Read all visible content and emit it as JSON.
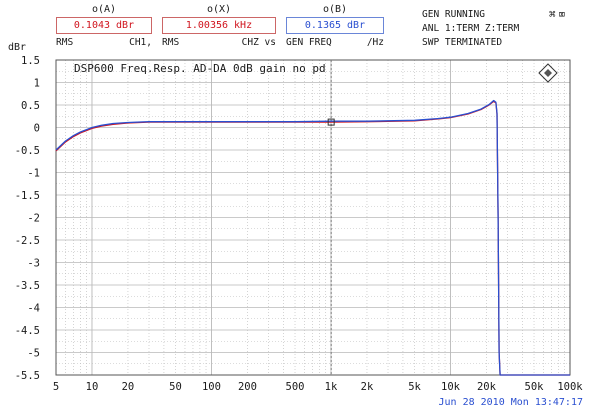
{
  "readouts": [
    {
      "id": "A",
      "caption": "o(A)",
      "value": "0.1043 dBr",
      "sub": [
        "RMS",
        "CH1,"
      ]
    },
    {
      "id": "X",
      "caption": "o(X)",
      "value": "1.00356 kHz",
      "sub": [
        "RMS",
        "CHZ vs"
      ]
    },
    {
      "id": "B",
      "caption": "o(B)",
      "value": "0.1365 dBr",
      "sub": [
        "GEN FREQ",
        "/Hz"
      ]
    }
  ],
  "status": [
    "GEN RUNNING",
    "ANL 1:TERM Z:TERM",
    "SWP TERMINATED"
  ],
  "datetime": "Jun 28 2010 Mon 13:47:17",
  "colors": {
    "trace_a": "#d0141e",
    "trace_b": "#2a4fd0",
    "readout_a": "#d0141e",
    "readout_b": "#2a4fd0",
    "grid": "#b8b8b8"
  },
  "icons": [
    "logo-diamond-icon",
    "toolbar-icons"
  ],
  "chart_data": {
    "type": "line",
    "title": "DSP600 Freq.Resp. AD-DA 0dB gain no pd",
    "xlabel": "",
    "ylabel": "dBr",
    "xscale": "log",
    "xlim": [
      5,
      100000
    ],
    "ylim": [
      -5.5,
      1.5
    ],
    "grid": true,
    "x_tick_labels": [
      "5",
      "10",
      "20",
      "50",
      "100",
      "200",
      "500",
      "1k",
      "2k",
      "5k",
      "10k",
      "20k",
      "50k",
      "100k"
    ],
    "x_tick_values": [
      5,
      10,
      20,
      50,
      100,
      200,
      500,
      1000,
      2000,
      5000,
      10000,
      20000,
      50000,
      100000
    ],
    "y_tick_labels": [
      "1.5",
      "1",
      "0.5",
      "0",
      "-0.5",
      "-1",
      "-1.5",
      "-2",
      "-2.5",
      "-3",
      "-3.5",
      "-4",
      "-4.5",
      "-5",
      "-5.5"
    ],
    "y_tick_values": [
      1.5,
      1,
      0.5,
      0,
      -0.5,
      -1,
      -1.5,
      -2,
      -2.5,
      -3,
      -3.5,
      -4,
      -4.5,
      -5,
      -5.5
    ],
    "cursor_x": 1003.56,
    "series": [
      {
        "id": "A",
        "color": "#d0141e",
        "points": [
          [
            5,
            -0.52
          ],
          [
            6,
            -0.32
          ],
          [
            7,
            -0.2
          ],
          [
            8,
            -0.12
          ],
          [
            10,
            -0.02
          ],
          [
            12,
            0.03
          ],
          [
            15,
            0.07
          ],
          [
            20,
            0.1
          ],
          [
            30,
            0.12
          ],
          [
            50,
            0.12
          ],
          [
            100,
            0.12
          ],
          [
            200,
            0.12
          ],
          [
            500,
            0.12
          ],
          [
            1000,
            0.12
          ],
          [
            2000,
            0.13
          ],
          [
            5000,
            0.15
          ],
          [
            8000,
            0.19
          ],
          [
            10000,
            0.22
          ],
          [
            14000,
            0.3
          ],
          [
            18000,
            0.4
          ],
          [
            21000,
            0.5
          ],
          [
            23000,
            0.58
          ],
          [
            24000,
            0.55
          ],
          [
            24500,
            0.3
          ],
          [
            25000,
            -2.0
          ],
          [
            25500,
            -5.0
          ],
          [
            26000,
            -5.5
          ],
          [
            50000,
            -5.5
          ],
          [
            100000,
            -5.5
          ]
        ]
      },
      {
        "id": "B",
        "color": "#2a4fd0",
        "points": [
          [
            5,
            -0.5
          ],
          [
            6,
            -0.3
          ],
          [
            7,
            -0.18
          ],
          [
            8,
            -0.1
          ],
          [
            10,
            0.0
          ],
          [
            12,
            0.05
          ],
          [
            15,
            0.09
          ],
          [
            20,
            0.11
          ],
          [
            30,
            0.13
          ],
          [
            50,
            0.13
          ],
          [
            100,
            0.13
          ],
          [
            200,
            0.13
          ],
          [
            500,
            0.13
          ],
          [
            1000,
            0.14
          ],
          [
            2000,
            0.14
          ],
          [
            5000,
            0.16
          ],
          [
            8000,
            0.2
          ],
          [
            10000,
            0.23
          ],
          [
            14000,
            0.31
          ],
          [
            18000,
            0.41
          ],
          [
            21000,
            0.51
          ],
          [
            23000,
            0.6
          ],
          [
            24000,
            0.56
          ],
          [
            24500,
            0.32
          ],
          [
            25000,
            -2.0
          ],
          [
            25500,
            -5.0
          ],
          [
            26000,
            -5.5
          ],
          [
            50000,
            -5.5
          ],
          [
            100000,
            -5.5
          ]
        ]
      }
    ]
  }
}
